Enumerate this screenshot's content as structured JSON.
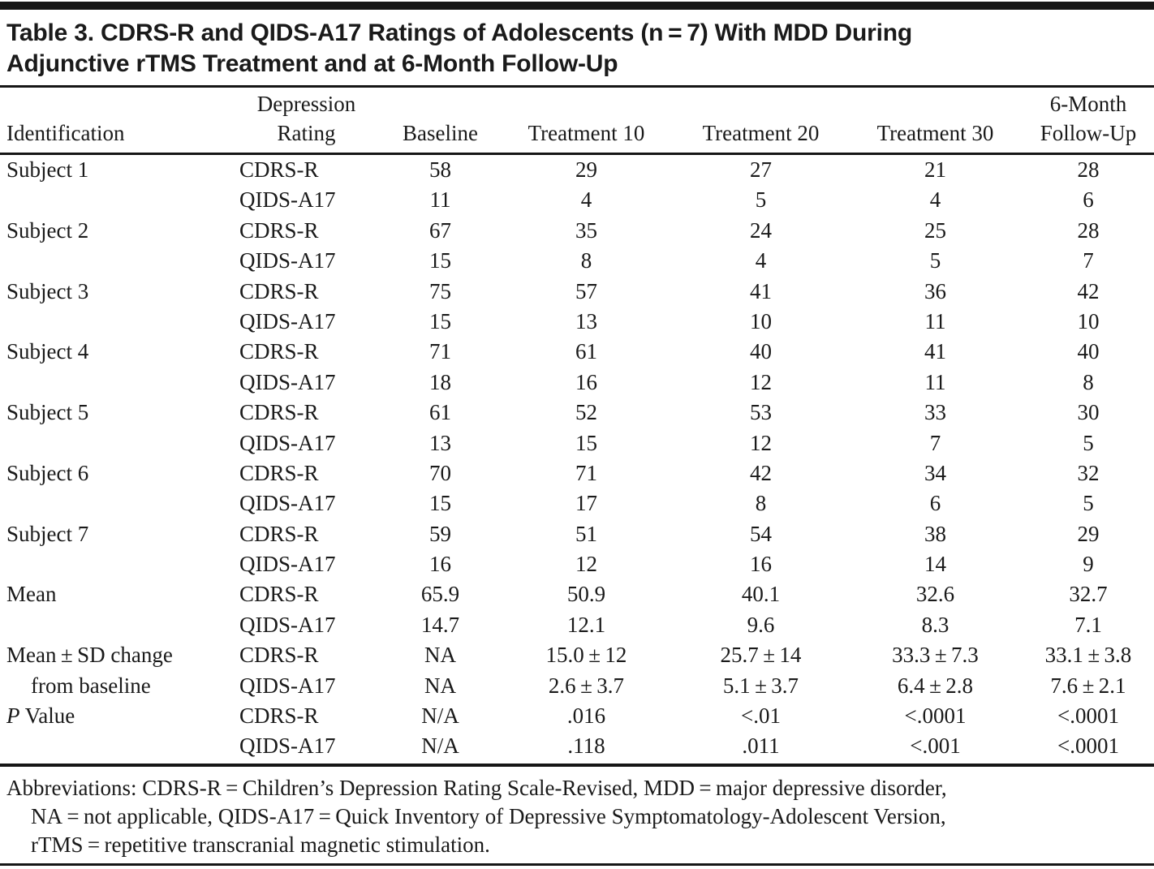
{
  "title_lines": [
    "Table 3. CDRS-R and QIDS-A17 Ratings of Adolescents (n = 7) With MDD During",
    "Adjunctive rTMS Treatment and at 6-Month Follow-Up"
  ],
  "table": {
    "columns": [
      {
        "key": "id",
        "header_lines": [
          "",
          "Identification"
        ]
      },
      {
        "key": "rating",
        "header_lines": [
          "Depression",
          "Rating"
        ]
      },
      {
        "key": "baseline",
        "header_lines": [
          "",
          "Baseline"
        ]
      },
      {
        "key": "t10",
        "header_lines": [
          "",
          "Treatment 10"
        ]
      },
      {
        "key": "t20",
        "header_lines": [
          "",
          "Treatment 20"
        ]
      },
      {
        "key": "t30",
        "header_lines": [
          "",
          "Treatment 30"
        ]
      },
      {
        "key": "fu",
        "header_lines": [
          "6-Month",
          "Follow-Up"
        ]
      }
    ],
    "rows": [
      {
        "id": "Subject 1",
        "rating": "CDRS-R",
        "baseline": "58",
        "t10": "29",
        "t20": "27",
        "t30": "21",
        "fu": "28"
      },
      {
        "id": "",
        "rating": "QIDS-A17",
        "baseline": "11",
        "t10": "4",
        "t20": "5",
        "t30": "4",
        "fu": "6"
      },
      {
        "id": "Subject 2",
        "rating": "CDRS-R",
        "baseline": "67",
        "t10": "35",
        "t20": "24",
        "t30": "25",
        "fu": "28"
      },
      {
        "id": "",
        "rating": "QIDS-A17",
        "baseline": "15",
        "t10": "8",
        "t20": "4",
        "t30": "5",
        "fu": "7"
      },
      {
        "id": "Subject 3",
        "rating": "CDRS-R",
        "baseline": "75",
        "t10": "57",
        "t20": "41",
        "t30": "36",
        "fu": "42"
      },
      {
        "id": "",
        "rating": "QIDS-A17",
        "baseline": "15",
        "t10": "13",
        "t20": "10",
        "t30": "11",
        "fu": "10"
      },
      {
        "id": "Subject 4",
        "rating": "CDRS-R",
        "baseline": "71",
        "t10": "61",
        "t20": "40",
        "t30": "41",
        "fu": "40"
      },
      {
        "id": "",
        "rating": "QIDS-A17",
        "baseline": "18",
        "t10": "16",
        "t20": "12",
        "t30": "11",
        "fu": "8"
      },
      {
        "id": "Subject 5",
        "rating": "CDRS-R",
        "baseline": "61",
        "t10": "52",
        "t20": "53",
        "t30": "33",
        "fu": "30"
      },
      {
        "id": "",
        "rating": "QIDS-A17",
        "baseline": "13",
        "t10": "15",
        "t20": "12",
        "t30": "7",
        "fu": "5"
      },
      {
        "id": "Subject 6",
        "rating": "CDRS-R",
        "baseline": "70",
        "t10": "71",
        "t20": "42",
        "t30": "34",
        "fu": "32"
      },
      {
        "id": "",
        "rating": "QIDS-A17",
        "baseline": "15",
        "t10": "17",
        "t20": "8",
        "t30": "6",
        "fu": "5"
      },
      {
        "id": "Subject 7",
        "rating": "CDRS-R",
        "baseline": "59",
        "t10": "51",
        "t20": "54",
        "t30": "38",
        "fu": "29"
      },
      {
        "id": "",
        "rating": "QIDS-A17",
        "baseline": "16",
        "t10": "12",
        "t20": "16",
        "t30": "14",
        "fu": "9"
      },
      {
        "id": "Mean",
        "rating": "CDRS-R",
        "baseline": "65.9",
        "t10": "50.9",
        "t20": "40.1",
        "t30": "32.6",
        "fu": "32.7"
      },
      {
        "id": "",
        "rating": "QIDS-A17",
        "baseline": "14.7",
        "t10": "12.1",
        "t20": "9.6",
        "t30": "8.3",
        "fu": "7.1"
      },
      {
        "id": "Mean ± SD change",
        "rating": "CDRS-R",
        "baseline": "NA",
        "t10": "15.0 ± 12",
        "t20": "25.7 ± 14",
        "t30": "33.3 ± 7.3",
        "fu": "33.1 ± 3.8"
      },
      {
        "id": "from baseline",
        "id_indent": true,
        "rating": "QIDS-A17",
        "baseline": "NA",
        "t10": "2.6 ± 3.7",
        "t20": "5.1 ± 3.7",
        "t30": "6.4 ± 2.8",
        "fu": "7.6 ± 2.1"
      },
      {
        "id_italic": "P",
        "id": " Value",
        "rating": "CDRS-R",
        "baseline": "N/A",
        "t10": ".016",
        "t20": "<.01",
        "t30": "<.0001",
        "fu": "<.0001"
      },
      {
        "id": "",
        "rating": "QIDS-A17",
        "baseline": "N/A",
        "t10": ".118",
        "t20": ".011",
        "t30": "<.001",
        "fu": "<.0001"
      }
    ]
  },
  "footnote_lines": [
    "Abbreviations: CDRS-R = Children’s Depression Rating Scale-Revised, MDD = major depressive disorder,",
    "NA = not applicable, QIDS-A17 = Quick Inventory of Depressive Symptomatology-Adolescent Version,",
    "rTMS = repetitive transcranial magnetic stimulation."
  ],
  "colors": {
    "text": "#1a1a1a",
    "rule": "#161616",
    "background": "#ffffff"
  }
}
